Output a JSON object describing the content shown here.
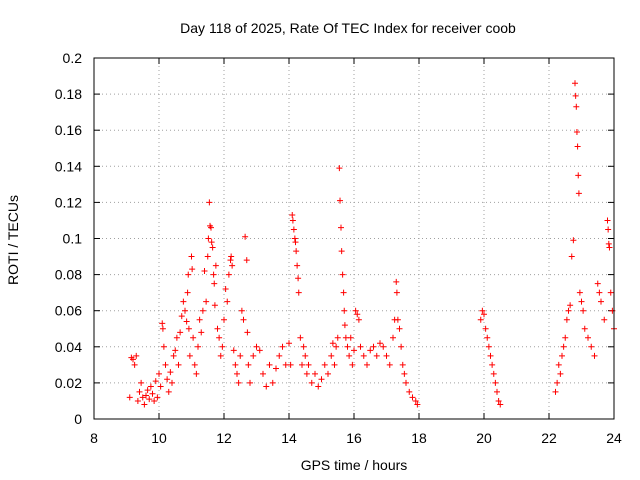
{
  "chart_data": {
    "type": "scatter",
    "title": "Day 118 of 2025, Rate Of TEC Index for receiver coob",
    "xlabel": "GPS time / hours",
    "ylabel": "ROTI / TECUs",
    "xlim": [
      8,
      24
    ],
    "ylim": [
      0,
      0.2
    ],
    "x_ticks": [
      8,
      10,
      12,
      14,
      16,
      18,
      20,
      22,
      24
    ],
    "x_tick_labels": [
      "8",
      "10",
      "12",
      "14",
      "16",
      "18",
      "20",
      "22",
      "24"
    ],
    "y_ticks": [
      0,
      0.02,
      0.04,
      0.06,
      0.08,
      0.1,
      0.12,
      0.14,
      0.16,
      0.18,
      0.2
    ],
    "y_tick_labels": [
      "0",
      "0.02",
      "0.04",
      "0.06",
      "0.08",
      "0.1",
      "0.12",
      "0.14",
      "0.16",
      "0.18",
      "0.2"
    ],
    "grid": true,
    "marker": "+",
    "series_color": "#ff0000",
    "series": [
      {
        "name": "ROTI",
        "points": [
          [
            9.1,
            0.012
          ],
          [
            9.15,
            0.034
          ],
          [
            9.2,
            0.033
          ],
          [
            9.25,
            0.03
          ],
          [
            9.3,
            0.035
          ],
          [
            9.35,
            0.01
          ],
          [
            9.4,
            0.015
          ],
          [
            9.45,
            0.02
          ],
          [
            9.5,
            0.012
          ],
          [
            9.55,
            0.008
          ],
          [
            9.6,
            0.013
          ],
          [
            9.65,
            0.016
          ],
          [
            9.7,
            0.011
          ],
          [
            9.75,
            0.018
          ],
          [
            9.8,
            0.014
          ],
          [
            9.85,
            0.01
          ],
          [
            9.9,
            0.021
          ],
          [
            9.95,
            0.012
          ],
          [
            10.0,
            0.025
          ],
          [
            10.05,
            0.018
          ],
          [
            10.1,
            0.053
          ],
          [
            10.12,
            0.05
          ],
          [
            10.15,
            0.04
          ],
          [
            10.2,
            0.03
          ],
          [
            10.25,
            0.022
          ],
          [
            10.3,
            0.015
          ],
          [
            10.35,
            0.026
          ],
          [
            10.4,
            0.02
          ],
          [
            10.45,
            0.035
          ],
          [
            10.5,
            0.038
          ],
          [
            10.55,
            0.045
          ],
          [
            10.6,
            0.03
          ],
          [
            10.65,
            0.048
          ],
          [
            10.7,
            0.057
          ],
          [
            10.75,
            0.065
          ],
          [
            10.8,
            0.06
          ],
          [
            10.85,
            0.054
          ],
          [
            10.88,
            0.07
          ],
          [
            10.9,
            0.08
          ],
          [
            10.92,
            0.05
          ],
          [
            10.95,
            0.035
          ],
          [
            11.0,
            0.09
          ],
          [
            11.02,
            0.083
          ],
          [
            11.05,
            0.045
          ],
          [
            11.1,
            0.03
          ],
          [
            11.15,
            0.025
          ],
          [
            11.2,
            0.04
          ],
          [
            11.25,
            0.055
          ],
          [
            11.3,
            0.048
          ],
          [
            11.35,
            0.06
          ],
          [
            11.4,
            0.082
          ],
          [
            11.45,
            0.065
          ],
          [
            11.5,
            0.09
          ],
          [
            11.52,
            0.1
          ],
          [
            11.55,
            0.12
          ],
          [
            11.57,
            0.107
          ],
          [
            11.6,
            0.106
          ],
          [
            11.62,
            0.098
          ],
          [
            11.65,
            0.095
          ],
          [
            11.68,
            0.08
          ],
          [
            11.7,
            0.075
          ],
          [
            11.72,
            0.063
          ],
          [
            11.75,
            0.085
          ],
          [
            11.8,
            0.05
          ],
          [
            11.85,
            0.045
          ],
          [
            11.9,
            0.035
          ],
          [
            11.95,
            0.04
          ],
          [
            12.0,
            0.055
          ],
          [
            12.05,
            0.072
          ],
          [
            12.1,
            0.065
          ],
          [
            12.15,
            0.08
          ],
          [
            12.2,
            0.088
          ],
          [
            12.22,
            0.09
          ],
          [
            12.25,
            0.085
          ],
          [
            12.3,
            0.038
          ],
          [
            12.35,
            0.03
          ],
          [
            12.4,
            0.025
          ],
          [
            12.45,
            0.02
          ],
          [
            12.5,
            0.035
          ],
          [
            12.55,
            0.06
          ],
          [
            12.6,
            0.055
          ],
          [
            12.65,
            0.101
          ],
          [
            12.7,
            0.088
          ],
          [
            12.72,
            0.048
          ],
          [
            12.75,
            0.03
          ],
          [
            12.8,
            0.02
          ],
          [
            12.9,
            0.035
          ],
          [
            13.0,
            0.04
          ],
          [
            13.1,
            0.038
          ],
          [
            13.2,
            0.025
          ],
          [
            13.3,
            0.018
          ],
          [
            13.4,
            0.03
          ],
          [
            13.5,
            0.02
          ],
          [
            13.6,
            0.028
          ],
          [
            13.7,
            0.035
          ],
          [
            13.8,
            0.04
          ],
          [
            13.9,
            0.03
          ],
          [
            14.0,
            0.042
          ],
          [
            14.05,
            0.03
          ],
          [
            14.1,
            0.113
          ],
          [
            14.12,
            0.11
          ],
          [
            14.15,
            0.105
          ],
          [
            14.18,
            0.1
          ],
          [
            14.2,
            0.098
          ],
          [
            14.22,
            0.093
          ],
          [
            14.25,
            0.085
          ],
          [
            14.28,
            0.078
          ],
          [
            14.3,
            0.07
          ],
          [
            14.35,
            0.045
          ],
          [
            14.4,
            0.03
          ],
          [
            14.45,
            0.04
          ],
          [
            14.5,
            0.035
          ],
          [
            14.55,
            0.025
          ],
          [
            14.6,
            0.03
          ],
          [
            14.7,
            0.02
          ],
          [
            14.8,
            0.025
          ],
          [
            14.9,
            0.018
          ],
          [
            15.0,
            0.022
          ],
          [
            15.1,
            0.03
          ],
          [
            15.2,
            0.025
          ],
          [
            15.3,
            0.035
          ],
          [
            15.35,
            0.042
          ],
          [
            15.4,
            0.03
          ],
          [
            15.45,
            0.04
          ],
          [
            15.5,
            0.045
          ],
          [
            15.55,
            0.139
          ],
          [
            15.57,
            0.121
          ],
          [
            15.6,
            0.106
          ],
          [
            15.62,
            0.093
          ],
          [
            15.65,
            0.08
          ],
          [
            15.68,
            0.07
          ],
          [
            15.7,
            0.06
          ],
          [
            15.72,
            0.052
          ],
          [
            15.75,
            0.045
          ],
          [
            15.8,
            0.04
          ],
          [
            15.85,
            0.035
          ],
          [
            15.9,
            0.045
          ],
          [
            15.95,
            0.03
          ],
          [
            16.0,
            0.038
          ],
          [
            16.05,
            0.06
          ],
          [
            16.1,
            0.058
          ],
          [
            16.15,
            0.055
          ],
          [
            16.2,
            0.04
          ],
          [
            16.3,
            0.035
          ],
          [
            16.4,
            0.03
          ],
          [
            16.5,
            0.038
          ],
          [
            16.6,
            0.04
          ],
          [
            16.7,
            0.035
          ],
          [
            16.8,
            0.042
          ],
          [
            16.9,
            0.04
          ],
          [
            17.0,
            0.035
          ],
          [
            17.1,
            0.03
          ],
          [
            17.2,
            0.045
          ],
          [
            17.25,
            0.055
          ],
          [
            17.3,
            0.076
          ],
          [
            17.32,
            0.07
          ],
          [
            17.35,
            0.055
          ],
          [
            17.4,
            0.05
          ],
          [
            17.45,
            0.04
          ],
          [
            17.5,
            0.03
          ],
          [
            17.55,
            0.025
          ],
          [
            17.6,
            0.02
          ],
          [
            17.7,
            0.015
          ],
          [
            17.8,
            0.012
          ],
          [
            17.9,
            0.01
          ],
          [
            17.95,
            0.008
          ],
          [
            19.9,
            0.055
          ],
          [
            19.95,
            0.06
          ],
          [
            20.0,
            0.058
          ],
          [
            20.05,
            0.05
          ],
          [
            20.1,
            0.045
          ],
          [
            20.15,
            0.04
          ],
          [
            20.2,
            0.035
          ],
          [
            20.25,
            0.03
          ],
          [
            20.3,
            0.025
          ],
          [
            20.35,
            0.02
          ],
          [
            20.4,
            0.015
          ],
          [
            20.45,
            0.01
          ],
          [
            20.5,
            0.008
          ],
          [
            22.2,
            0.015
          ],
          [
            22.25,
            0.02
          ],
          [
            22.3,
            0.03
          ],
          [
            22.35,
            0.025
          ],
          [
            22.4,
            0.035
          ],
          [
            22.45,
            0.04
          ],
          [
            22.5,
            0.045
          ],
          [
            22.55,
            0.055
          ],
          [
            22.6,
            0.06
          ],
          [
            22.65,
            0.063
          ],
          [
            22.7,
            0.09
          ],
          [
            22.75,
            0.099
          ],
          [
            22.8,
            0.186
          ],
          [
            22.82,
            0.179
          ],
          [
            22.84,
            0.173
          ],
          [
            22.86,
            0.159
          ],
          [
            22.88,
            0.151
          ],
          [
            22.9,
            0.135
          ],
          [
            22.92,
            0.125
          ],
          [
            22.95,
            0.07
          ],
          [
            23.0,
            0.065
          ],
          [
            23.05,
            0.06
          ],
          [
            23.1,
            0.05
          ],
          [
            23.2,
            0.045
          ],
          [
            23.3,
            0.04
          ],
          [
            23.4,
            0.035
          ],
          [
            23.5,
            0.075
          ],
          [
            23.55,
            0.07
          ],
          [
            23.6,
            0.065
          ],
          [
            23.7,
            0.055
          ],
          [
            23.8,
            0.11
          ],
          [
            23.82,
            0.105
          ],
          [
            23.84,
            0.097
          ],
          [
            23.86,
            0.095
          ],
          [
            23.9,
            0.07
          ],
          [
            23.95,
            0.06
          ],
          [
            24.0,
            0.05
          ]
        ]
      }
    ]
  }
}
